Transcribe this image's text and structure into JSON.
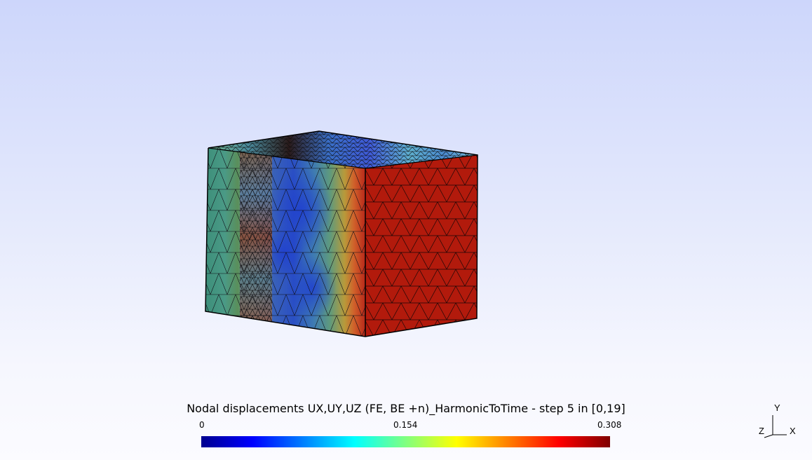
{
  "legend": {
    "title": "Nodal displacements UX,UY,UZ (FE, BE +n)_HarmonicToTime - step 5 in [0,19]",
    "min_label": "0",
    "mid_label": "0.154",
    "max_label": "0.308",
    "colormap": [
      "#00008f",
      "#0000ff",
      "#0080ff",
      "#00ffff",
      "#80ff80",
      "#ffff00",
      "#ff8000",
      "#ff0000",
      "#800000"
    ]
  },
  "axes": {
    "y_label": "Y",
    "z_label": "Z",
    "x_label": "X"
  },
  "colors": {
    "mesh_red": "#b21a0c",
    "mesh_line": "#1a0000"
  }
}
